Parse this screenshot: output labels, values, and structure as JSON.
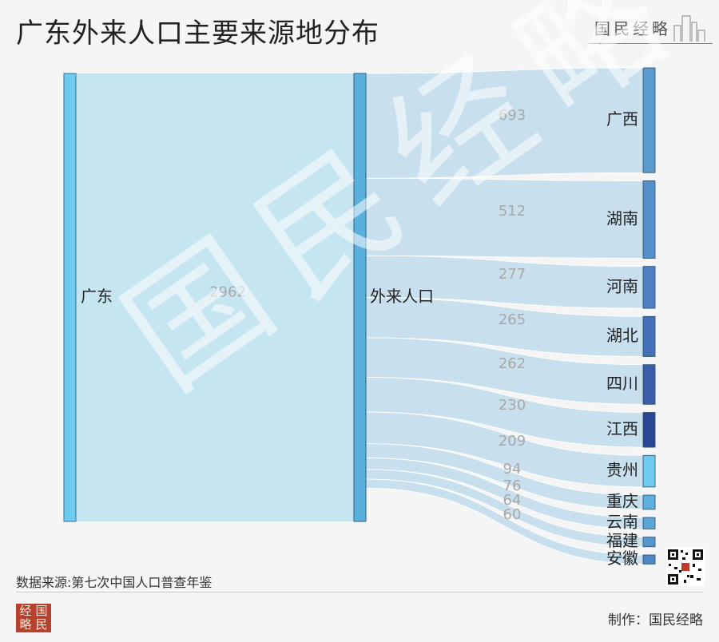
{
  "title": "广东外来人口主要来源地分布",
  "brand": "国民经略",
  "source": "数据来源:第七次中国人口普查年鉴",
  "maker": "制作：国民经略",
  "logo_chars": [
    "经",
    "国",
    "略",
    "民"
  ],
  "watermark": "国民经略",
  "colors": {
    "node_source": "#6ccbef",
    "node_mid": "#5ab0dc",
    "flow": "#c5e5f1",
    "outflow": "#bfdcec"
  },
  "chart_data": {
    "type": "sankey",
    "source_node": {
      "name": "广东",
      "value": 2962
    },
    "mid_node": {
      "name": "外来人口"
    },
    "targets": [
      {
        "name": "广西",
        "value": 693,
        "color": "#5b9bd0"
      },
      {
        "name": "湖南",
        "value": 512,
        "color": "#5690cc"
      },
      {
        "name": "河南",
        "value": 277,
        "color": "#4d7fc2"
      },
      {
        "name": "湖北",
        "value": 265,
        "color": "#4470b8"
      },
      {
        "name": "四川",
        "value": 262,
        "color": "#3a5ea8"
      },
      {
        "name": "江西",
        "value": 230,
        "color": "#2b4595"
      },
      {
        "name": "贵州",
        "value": 209,
        "color": "#6ccbef"
      },
      {
        "name": "重庆",
        "value": 94,
        "color": "#5fb0de"
      },
      {
        "name": "云南",
        "value": 76,
        "color": "#5aa4d6"
      },
      {
        "name": "福建",
        "value": 64,
        "color": "#5596cd"
      },
      {
        "name": "安徽",
        "value": 60,
        "color": "#4f86c4"
      }
    ]
  }
}
